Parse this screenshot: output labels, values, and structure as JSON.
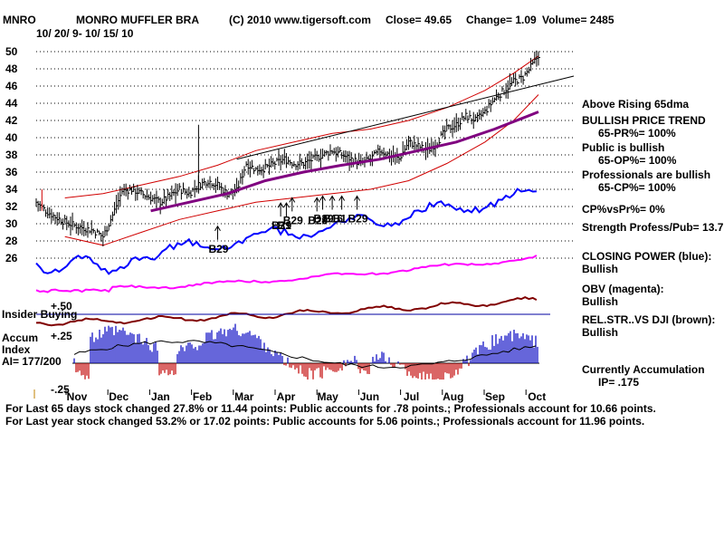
{
  "header": {
    "ticker": "MNRO",
    "company": "MONRO MUFFLER BRA",
    "copyright": "(C) 2010 www.tigersoft.com",
    "close": "Close=  49.65",
    "change": "Change= 1.09",
    "volume": "Volume= 2485",
    "date_range": "10/ 20/ 9- 10/ 15/ 10"
  },
  "panel_labels": {
    "insider": "Insider Buying",
    "accum": "Accum",
    "index": "Index",
    "ai": "AI= 177/200",
    "plus50": "+.50",
    "plus25": "+.25",
    "minus25": "-.25"
  },
  "status": [
    {
      "title": "Above Rising 65dma",
      "values": []
    },
    {
      "title": "BULLISH PRICE TREND",
      "values": [
        "65-PR%= 100%"
      ]
    },
    {
      "title": "Public is bullish",
      "values": [
        "65-OP%= 100%"
      ]
    },
    {
      "title": "Professionals are bullish",
      "values": [
        "65-CP%= 100%"
      ]
    },
    {
      "title": "CP%vsPr%=  0%",
      "values": []
    },
    {
      "title": "Strength Profess/Pub= 13.7",
      "values": []
    },
    {
      "title": "CLOSING POWER (blue):",
      "values": [
        "Bullish"
      ]
    },
    {
      "title": "OBV (magenta):",
      "values": [
        "Bullish"
      ]
    },
    {
      "title": "REL.STR..VS DJI (brown):",
      "values": [
        "Bullish"
      ]
    },
    {
      "title": "Currently Accumulation",
      "values": [
        "IP=  .175"
      ]
    }
  ],
  "footer": [
    "For Last 65 days stock changed  27.8% or  11.44 points:  Public accounts for  .78 points.;  Professionals account for  10.66 points.",
    "For Last year stock changed  53.2% or  17.02 points:  Public accounts for  5.06 points.;  Professionals account for  11.96 points."
  ],
  "signals": [
    "B29",
    "B29",
    "B1",
    "B29",
    "B29",
    "B29",
    "B16",
    "B1",
    "B29"
  ],
  "colors": {
    "price": "#000000",
    "ma65": "#800080",
    "bands": "#d00000",
    "closing_power": "#0000ff",
    "obv": "#ff00ff",
    "relstr": "#800000",
    "accum_pos": "#0000c0",
    "accum_neg": "#c00000"
  },
  "chart_data": {
    "type": "line",
    "y_ticks": [
      26,
      28,
      30,
      32,
      34,
      36,
      38,
      40,
      42,
      44,
      46,
      48,
      50
    ],
    "ylim": [
      25,
      51
    ],
    "x_tick_labels": [
      "Nov",
      "Dec",
      "Jan",
      "Feb",
      "Mar",
      "Apr",
      "May",
      "Jun",
      "Jul",
      "Aug",
      "Sep",
      "Oct"
    ],
    "grid": true,
    "price_close": [
      [
        0,
        32.5
      ],
      [
        5,
        31.5
      ],
      [
        10,
        30.8
      ],
      [
        15,
        30.2
      ],
      [
        20,
        29.8
      ],
      [
        25,
        29.5
      ],
      [
        30,
        29.2
      ],
      [
        35,
        28.5
      ],
      [
        40,
        31.0
      ],
      [
        45,
        33.8
      ],
      [
        50,
        34.0
      ],
      [
        55,
        33.5
      ],
      [
        60,
        33.0
      ],
      [
        65,
        32.5
      ],
      [
        70,
        33.2
      ],
      [
        75,
        34.0
      ],
      [
        80,
        33.5
      ],
      [
        85,
        34.5
      ],
      [
        90,
        35.0
      ],
      [
        95,
        34.5
      ],
      [
        100,
        33.5
      ],
      [
        105,
        33.8
      ],
      [
        110,
        37.0
      ],
      [
        115,
        36.3
      ],
      [
        120,
        36.5
      ],
      [
        125,
        37.0
      ],
      [
        130,
        37.5
      ],
      [
        135,
        37.0
      ],
      [
        140,
        37.0
      ],
      [
        145,
        37.5
      ],
      [
        150,
        38.0
      ],
      [
        155,
        38.5
      ],
      [
        160,
        38.0
      ],
      [
        165,
        37.5
      ],
      [
        170,
        37.0
      ],
      [
        175,
        37.5
      ],
      [
        180,
        38.5
      ],
      [
        185,
        38.0
      ],
      [
        190,
        37.5
      ],
      [
        195,
        39.5
      ],
      [
        200,
        39.0
      ],
      [
        205,
        38.5
      ],
      [
        210,
        39.5
      ],
      [
        215,
        41.0
      ],
      [
        220,
        41.5
      ],
      [
        225,
        42.5
      ],
      [
        230,
        42.0
      ],
      [
        235,
        43.0
      ],
      [
        240,
        44.5
      ],
      [
        245,
        45.5
      ],
      [
        250,
        46.5
      ],
      [
        255,
        47.0
      ],
      [
        260,
        48.5
      ],
      [
        263,
        49.65
      ]
    ],
    "ma65": [
      [
        60,
        31.5
      ],
      [
        80,
        32.5
      ],
      [
        100,
        33.5
      ],
      [
        120,
        35.0
      ],
      [
        140,
        36.0
      ],
      [
        160,
        36.8
      ],
      [
        180,
        37.5
      ],
      [
        200,
        38.5
      ],
      [
        220,
        39.5
      ],
      [
        240,
        41.0
      ],
      [
        255,
        42.3
      ],
      [
        263,
        43.0
      ]
    ],
    "upper_band": [
      [
        15,
        33.0
      ],
      [
        35,
        33.5
      ],
      [
        55,
        34.5
      ],
      [
        75,
        35.5
      ],
      [
        95,
        36.8
      ],
      [
        115,
        38.5
      ],
      [
        135,
        39.5
      ],
      [
        155,
        40.5
      ],
      [
        175,
        41.0
      ],
      [
        195,
        42.0
      ],
      [
        215,
        43.5
      ],
      [
        235,
        45.5
      ],
      [
        250,
        47.5
      ],
      [
        263,
        49.5
      ]
    ],
    "lower_band": [
      [
        15,
        28.5
      ],
      [
        35,
        27.5
      ],
      [
        55,
        29.0
      ],
      [
        75,
        30.5
      ],
      [
        95,
        31.5
      ],
      [
        115,
        32.5
      ],
      [
        135,
        33.0
      ],
      [
        155,
        33.5
      ],
      [
        175,
        34.0
      ],
      [
        195,
        35.0
      ],
      [
        215,
        37.0
      ],
      [
        235,
        39.5
      ],
      [
        250,
        42.0
      ],
      [
        263,
        45.0
      ]
    ],
    "resistance_line": [
      [
        105,
        37.5
      ],
      [
        263,
        47.0
      ]
    ],
    "series_note": [
      "CLOSING POWER (blue)",
      "OBV (magenta)",
      "REL.STR..VS DJI (brown)"
    ]
  }
}
